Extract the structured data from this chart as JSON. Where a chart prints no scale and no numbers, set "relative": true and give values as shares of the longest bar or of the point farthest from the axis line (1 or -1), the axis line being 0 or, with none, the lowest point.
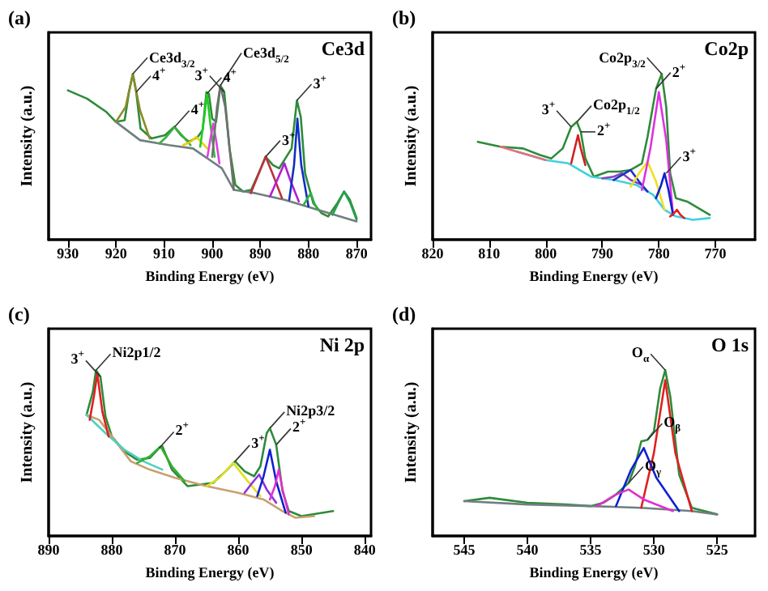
{
  "chart_data": [
    {
      "type": "line",
      "title": "(a)",
      "xlabel": "Binding Energy (eV)",
      "ylabel": "Intensity (a.u.)",
      "relative": true,
      "xlim": [
        934,
        867
      ],
      "xticks": [
        930,
        920,
        910,
        900,
        890,
        880,
        870
      ],
      "series": [
        {
          "color": "#2e8b3a",
          "x": [
            930,
            926,
            922,
            920,
            918.2,
            917.3,
            916.5,
            915.8,
            914.9,
            912.6,
            909.8,
            907.9,
            906.5,
            904.8,
            903,
            902,
            901.2,
            900.7,
            900,
            899.2,
            898.3,
            897.5,
            896.4,
            895.2,
            893.6,
            891.9,
            890.2,
            888.9,
            887.4,
            886.1,
            884.8,
            883.5,
            882.4,
            881.6,
            880.7,
            879,
            877.3,
            875.9,
            874,
            872.6,
            871.4,
            870
          ],
          "values": [
            0.9,
            0.85,
            0.77,
            0.71,
            0.72,
            0.89,
            1.0,
            0.89,
            0.67,
            0.61,
            0.63,
            0.68,
            0.63,
            0.59,
            0.62,
            0.66,
            0.89,
            0.88,
            0.73,
            0.71,
            0.93,
            0.89,
            0.55,
            0.33,
            0.29,
            0.3,
            0.41,
            0.5,
            0.45,
            0.43,
            0.49,
            0.55,
            0.84,
            0.74,
            0.4,
            0.22,
            0.16,
            0.14,
            0.22,
            0.29,
            0.24,
            0.13
          ]
        },
        {
          "color": "#6f7f80",
          "x": [
            920,
            915,
            909,
            904,
            898,
            895.5,
            891,
            885,
            878,
            870
          ],
          "values": [
            0.71,
            0.6,
            0.57,
            0.55,
            0.43,
            0.3,
            0.28,
            0.24,
            0.18,
            0.11
          ]
        },
        {
          "color": "#8b8b2a",
          "x": [
            920,
            918,
            916.5,
            915,
            913
          ],
          "values": [
            0.71,
            0.8,
            1.0,
            0.78,
            0.61
          ]
        },
        {
          "color": "#3cb043",
          "x": [
            911,
            909.5,
            907.8,
            906,
            904.5
          ],
          "values": [
            0.58,
            0.62,
            0.68,
            0.62,
            0.57
          ]
        },
        {
          "color": "#e6d200",
          "x": [
            906,
            904.5,
            903.3,
            902,
            901
          ],
          "values": [
            0.57,
            0.59,
            0.62,
            0.58,
            0.55
          ]
        },
        {
          "color": "#22cc22",
          "x": [
            902.5,
            901.6,
            901.1,
            900.4,
            899.5
          ],
          "values": [
            0.56,
            0.75,
            0.88,
            0.7,
            0.5
          ]
        },
        {
          "color": "#e040e0",
          "x": [
            901,
            900.3,
            899.8,
            899.2,
            898.5
          ],
          "values": [
            0.5,
            0.62,
            0.7,
            0.6,
            0.46
          ]
        },
        {
          "color": "#707070",
          "x": [
            900,
            899,
            898.3,
            897.3,
            895.5
          ],
          "values": [
            0.5,
            0.8,
            0.93,
            0.8,
            0.3
          ]
        },
        {
          "color": "#c0303a",
          "x": [
            892,
            890.3,
            888.9,
            887.5,
            885.5
          ],
          "values": [
            0.28,
            0.4,
            0.5,
            0.4,
            0.25
          ]
        },
        {
          "color": "#b020d0",
          "x": [
            888,
            886.2,
            885,
            883.8,
            882
          ],
          "values": [
            0.26,
            0.38,
            0.46,
            0.36,
            0.23
          ]
        },
        {
          "color": "#1030c0",
          "x": [
            884,
            883,
            882.3,
            881.5,
            880
          ],
          "values": [
            0.24,
            0.45,
            0.73,
            0.45,
            0.2
          ]
        },
        {
          "color": "#30b040",
          "x": [
            881,
            880.2,
            879.5,
            878.8,
            878
          ],
          "values": [
            0.21,
            0.25,
            0.28,
            0.22,
            0.18
          ]
        },
        {
          "color": "#28a050",
          "x": [
            875,
            874,
            872.6,
            871.3,
            870
          ],
          "values": [
            0.15,
            0.21,
            0.29,
            0.22,
            0.12
          ]
        }
      ],
      "annotations": [
        "Ce3d",
        {
          "text": "Ce3d$_{3/2}$",
          "x": 916.5,
          "y": 1.0
        },
        {
          "text": "4$^{+}$",
          "x": 915.8,
          "y": 0.89
        },
        {
          "text": "4$^{+}$",
          "x": 907.8,
          "y": 0.68
        },
        {
          "text": "4$^{+}$",
          "x": 901.1,
          "y": 0.88
        },
        {
          "text": "Ce3d$_{5/2}$",
          "x": 898.3,
          "y": 0.93
        },
        {
          "text": "3$^{+}$",
          "x": 897.5,
          "y": 0.89
        },
        {
          "text": "3$^{+}$",
          "x": 888.9,
          "y": 0.5
        },
        {
          "text": "3$^{+}$",
          "x": 882.4,
          "y": 0.84
        }
      ]
    },
    {
      "type": "line",
      "title": "(b)",
      "xlabel": "Binding Energy (eV)",
      "ylabel": "Intensity (a.u.)",
      "relative": true,
      "xlim": [
        820,
        763
      ],
      "xticks": [
        820,
        810,
        800,
        790,
        780,
        770
      ],
      "series": [
        {
          "color": "#2e8b3a",
          "x": [
            812,
            808,
            804,
            801,
            799,
            797,
            795.5,
            794.5,
            793.8,
            793,
            791.5,
            789,
            787,
            785,
            783,
            782,
            780.5,
            779.5,
            778.7,
            778,
            777,
            775,
            773,
            771
          ],
          "values": [
            0.59,
            0.56,
            0.55,
            0.51,
            0.49,
            0.55,
            0.68,
            0.71,
            0.65,
            0.49,
            0.38,
            0.41,
            0.41,
            0.42,
            0.46,
            0.62,
            0.91,
            1.0,
            0.8,
            0.4,
            0.25,
            0.23,
            0.19,
            0.15
          ]
        },
        {
          "color": "#40d0e0",
          "x": [
            805,
            800,
            796,
            792,
            788,
            784,
            781,
            779,
            777,
            774,
            771
          ],
          "values": [
            0.53,
            0.48,
            0.46,
            0.38,
            0.36,
            0.33,
            0.27,
            0.18,
            0.14,
            0.12,
            0.13
          ]
        },
        {
          "color": "#e07080",
          "x": [
            808,
            805,
            802,
            800
          ],
          "values": [
            0.56,
            0.53,
            0.5,
            0.48
          ]
        },
        {
          "color": "#d02020",
          "x": [
            795.5,
            794.8,
            794.3,
            793.8,
            793
          ],
          "values": [
            0.46,
            0.56,
            0.63,
            0.55,
            0.45
          ]
        },
        {
          "color": "#9040c0",
          "x": [
            790,
            788,
            786.5,
            785,
            783
          ],
          "values": [
            0.37,
            0.38,
            0.4,
            0.36,
            0.33
          ]
        },
        {
          "color": "#2030c0",
          "x": [
            788,
            786.5,
            785,
            783.5,
            782
          ],
          "values": [
            0.36,
            0.39,
            0.42,
            0.35,
            0.29
          ]
        },
        {
          "color": "#f0e020",
          "x": [
            785,
            783.5,
            782,
            780.5,
            779
          ],
          "values": [
            0.32,
            0.4,
            0.47,
            0.35,
            0.18
          ]
        },
        {
          "color": "#e030e0",
          "x": [
            783,
            781.5,
            780,
            778.7,
            777.5
          ],
          "values": [
            0.3,
            0.55,
            0.89,
            0.6,
            0.15
          ]
        },
        {
          "color": "#1020d0",
          "x": [
            780.5,
            779.6,
            779,
            778.3,
            777.5
          ],
          "values": [
            0.25,
            0.33,
            0.4,
            0.3,
            0.15
          ]
        },
        {
          "color": "#e02020",
          "x": [
            778,
            777.3,
            776.8,
            776.2,
            775.5
          ],
          "values": [
            0.14,
            0.16,
            0.18,
            0.15,
            0.13
          ]
        }
      ],
      "annotations": [
        "Co2p",
        {
          "text": "Co2p$_{1/2}$",
          "x": 794.5,
          "y": 0.71
        },
        {
          "text": "3$^{+}$",
          "x": 795.5,
          "y": 0.68
        },
        {
          "text": "2$^{+}$",
          "x": 793.8,
          "y": 0.65
        },
        {
          "text": "Co2p$_{3/2}$",
          "x": 779.5,
          "y": 1.0
        },
        {
          "text": "2$^{+}$",
          "x": 780.5,
          "y": 0.91
        },
        {
          "text": "3$^{+}$",
          "x": 778.7,
          "y": 0.4
        }
      ]
    },
    {
      "type": "line",
      "title": "(c)",
      "xlabel": "Binding Energy (eV)",
      "ylabel": "Intensity (a.u.)",
      "relative": true,
      "xlim": [
        890,
        839
      ],
      "xticks": [
        890,
        880,
        870,
        860,
        850,
        840
      ],
      "series": [
        {
          "color": "#2e8b3a",
          "x": [
            884,
            883,
            882.5,
            881.8,
            881,
            880,
            878,
            876,
            874,
            872.5,
            872,
            870.5,
            868,
            866,
            864,
            862,
            860.5,
            859,
            857.5,
            856.5,
            855.5,
            855,
            854,
            853,
            852,
            850,
            845
          ],
          "values": [
            0.73,
            0.87,
            1.0,
            0.96,
            0.72,
            0.6,
            0.51,
            0.46,
            0.47,
            0.53,
            0.54,
            0.4,
            0.3,
            0.31,
            0.32,
            0.39,
            0.45,
            0.39,
            0.36,
            0.42,
            0.62,
            0.65,
            0.55,
            0.27,
            0.15,
            0.12,
            0.15
          ]
        },
        {
          "color": "#c8a070",
          "x": [
            884,
            882,
            880,
            877,
            874,
            870,
            865,
            860,
            856,
            853,
            851,
            848
          ],
          "values": [
            0.73,
            0.7,
            0.6,
            0.45,
            0.4,
            0.35,
            0.3,
            0.26,
            0.22,
            0.15,
            0.11,
            0.12
          ]
        },
        {
          "color": "#50d0c0",
          "x": [
            884,
            881,
            878,
            875,
            872
          ],
          "values": [
            0.73,
            0.62,
            0.52,
            0.45,
            0.4
          ]
        },
        {
          "color": "#e02020",
          "x": [
            883.5,
            882.8,
            882.3,
            881.5,
            880.5
          ],
          "values": [
            0.7,
            0.85,
            0.98,
            0.75,
            0.6
          ]
        },
        {
          "color": "#30b030",
          "x": [
            876,
            874,
            872.3,
            870.5,
            868.5
          ],
          "values": [
            0.44,
            0.48,
            0.54,
            0.42,
            0.33
          ]
        },
        {
          "color": "#e0e020",
          "x": [
            865,
            863,
            860.8,
            858.5,
            856.5
          ],
          "values": [
            0.3,
            0.35,
            0.44,
            0.33,
            0.24
          ]
        },
        {
          "color": "#9030e0",
          "x": [
            859,
            857.8,
            856.7,
            855.5,
            854
          ],
          "values": [
            0.26,
            0.32,
            0.37,
            0.28,
            0.2
          ]
        },
        {
          "color": "#1020d0",
          "x": [
            857,
            856,
            855,
            854,
            852.5
          ],
          "values": [
            0.24,
            0.36,
            0.52,
            0.33,
            0.14
          ]
        },
        {
          "color": "#e030d0",
          "x": [
            855,
            854.2,
            853.6,
            853,
            852
          ],
          "values": [
            0.22,
            0.3,
            0.4,
            0.28,
            0.13
          ]
        }
      ],
      "annotations": [
        "Ni 2p",
        {
          "text": "Ni2p1/2",
          "x": 882.5,
          "y": 1.0
        },
        {
          "text": "3$^{+}$",
          "x": 881.8,
          "y": 0.96
        },
        {
          "text": "2$^{+}$",
          "x": 872.5,
          "y": 0.53
        },
        {
          "text": "3$^{+}$",
          "x": 860.5,
          "y": 0.45
        },
        {
          "text": "Ni2p3/2",
          "x": 855,
          "y": 0.65
        },
        {
          "text": "2$^{+}$",
          "x": 854,
          "y": 0.55
        }
      ]
    },
    {
      "type": "line",
      "title": "(d)",
      "xlabel": "Binding Energy (eV)",
      "ylabel": "Intensity (a.u.)",
      "relative": true,
      "xlim": [
        547.5,
        522
      ],
      "xticks": [
        545,
        540,
        535,
        530,
        525
      ],
      "series": [
        {
          "color": "#2e8b3a",
          "x": [
            545,
            543,
            540,
            537,
            535,
            534,
            533,
            532,
            531.5,
            531,
            530.5,
            530,
            529.5,
            529.1,
            528.7,
            528,
            527,
            525
          ],
          "values": [
            0.21,
            0.23,
            0.2,
            0.19,
            0.18,
            0.2,
            0.25,
            0.32,
            0.42,
            0.57,
            0.58,
            0.63,
            0.89,
            1.0,
            0.84,
            0.37,
            0.17,
            0.13
          ]
        },
        {
          "color": "#6f7f80",
          "x": [
            545,
            540,
            535,
            531,
            529,
            527,
            525
          ],
          "values": [
            0.21,
            0.19,
            0.18,
            0.17,
            0.16,
            0.15,
            0.13
          ]
        },
        {
          "color": "#e02020",
          "x": [
            531,
            530,
            529.1,
            528.3,
            527
          ],
          "values": [
            0.17,
            0.5,
            0.94,
            0.5,
            0.15
          ]
        },
        {
          "color": "#1020d0",
          "x": [
            533,
            531.8,
            530.8,
            529.8,
            528
          ],
          "values": [
            0.18,
            0.4,
            0.53,
            0.35,
            0.15
          ]
        },
        {
          "color": "#e030d0",
          "x": [
            534.5,
            533,
            532,
            530.8,
            528.5
          ],
          "values": [
            0.18,
            0.25,
            0.28,
            0.22,
            0.15
          ]
        }
      ],
      "annotations": [
        "O 1s",
        {
          "text": "O$_{α}$",
          "x": 529.1,
          "y": 1.0
        },
        {
          "text": "O$_{β}$",
          "x": 530.5,
          "y": 0.58
        },
        {
          "text": "O$_{γ}$",
          "x": 532,
          "y": 0.32
        }
      ]
    }
  ]
}
